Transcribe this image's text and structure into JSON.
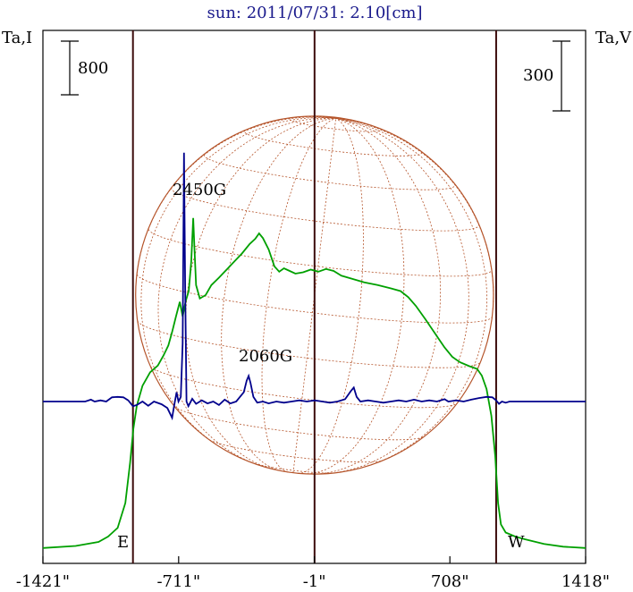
{
  "title": "sun: 2011/07/31: 2.10[cm]",
  "left_axis_label": "Ta,I",
  "right_axis_label": "Ta,V",
  "left_scale_label": "800",
  "right_scale_label": "300",
  "limb_labels": {
    "east": "E",
    "west": "W"
  },
  "annotations": {
    "peak1": "2450G",
    "peak2": "2060G"
  },
  "colors": {
    "intensity": "#00a000",
    "polarization": "#00008c",
    "disk": "#b5542a",
    "frame": "#000000",
    "limb_lines": "#3c0c0c",
    "title": "#1a1a8c"
  },
  "chart_data": {
    "type": "line",
    "title": "sun: 2011/07/31: 2.10[cm]",
    "x_ticks": [
      {
        "value": -1421,
        "label": "-1421\""
      },
      {
        "value": -711,
        "label": "-711\""
      },
      {
        "value": -1,
        "label": "-1\""
      },
      {
        "value": 708,
        "label": "708\""
      },
      {
        "value": 1418,
        "label": "1418\""
      }
    ],
    "xlim": [
      -1421,
      1418
    ],
    "limb_positions": [
      -950,
      950
    ],
    "center_position": 0,
    "series": [
      {
        "name": "Ta,I",
        "scale_bar": 800,
        "baseline": 0,
        "points": [
          [
            -1421,
            30
          ],
          [
            -1250,
            60
          ],
          [
            -1130,
            120
          ],
          [
            -1080,
            200
          ],
          [
            -1030,
            330
          ],
          [
            -990,
            700
          ],
          [
            -965,
            1300
          ],
          [
            -948,
            1800
          ],
          [
            -930,
            2150
          ],
          [
            -900,
            2450
          ],
          [
            -860,
            2650
          ],
          [
            -820,
            2750
          ],
          [
            -790,
            2900
          ],
          [
            -765,
            3050
          ],
          [
            -745,
            3250
          ],
          [
            -725,
            3480
          ],
          [
            -705,
            3700
          ],
          [
            -690,
            3480
          ],
          [
            -675,
            3700
          ],
          [
            -658,
            3860
          ],
          [
            -645,
            4300
          ],
          [
            -635,
            4950
          ],
          [
            -628,
            4500
          ],
          [
            -620,
            3950
          ],
          [
            -600,
            3750
          ],
          [
            -570,
            3800
          ],
          [
            -540,
            3950
          ],
          [
            -500,
            4060
          ],
          [
            -460,
            4180
          ],
          [
            -420,
            4300
          ],
          [
            -380,
            4420
          ],
          [
            -340,
            4560
          ],
          [
            -310,
            4640
          ],
          [
            -290,
            4720
          ],
          [
            -270,
            4650
          ],
          [
            -240,
            4480
          ],
          [
            -210,
            4230
          ],
          [
            -185,
            4150
          ],
          [
            -160,
            4200
          ],
          [
            -130,
            4160
          ],
          [
            -100,
            4120
          ],
          [
            -60,
            4140
          ],
          [
            -20,
            4180
          ],
          [
            20,
            4150
          ],
          [
            60,
            4190
          ],
          [
            100,
            4160
          ],
          [
            140,
            4090
          ],
          [
            200,
            4040
          ],
          [
            260,
            3990
          ],
          [
            330,
            3950
          ],
          [
            400,
            3900
          ],
          [
            450,
            3860
          ],
          [
            490,
            3770
          ],
          [
            530,
            3640
          ],
          [
            580,
            3440
          ],
          [
            630,
            3230
          ],
          [
            680,
            3020
          ],
          [
            720,
            2880
          ],
          [
            760,
            2800
          ],
          [
            810,
            2740
          ],
          [
            850,
            2700
          ],
          [
            875,
            2600
          ],
          [
            900,
            2400
          ],
          [
            925,
            2000
          ],
          [
            945,
            1400
          ],
          [
            960,
            700
          ],
          [
            975,
            380
          ],
          [
            1000,
            260
          ],
          [
            1050,
            200
          ],
          [
            1100,
            160
          ],
          [
            1200,
            90
          ],
          [
            1300,
            50
          ],
          [
            1418,
            30
          ]
        ]
      },
      {
        "name": "Ta,V",
        "scale_bar": 300,
        "baseline": 0,
        "points": [
          [
            -1421,
            0
          ],
          [
            -1200,
            0
          ],
          [
            -1170,
            8
          ],
          [
            -1150,
            0
          ],
          [
            -1120,
            5
          ],
          [
            -1090,
            0
          ],
          [
            -1060,
            18
          ],
          [
            -1030,
            20
          ],
          [
            -1000,
            18
          ],
          [
            -975,
            5
          ],
          [
            -950,
            -20
          ],
          [
            -930,
            -15
          ],
          [
            -900,
            0
          ],
          [
            -870,
            -18
          ],
          [
            -840,
            0
          ],
          [
            -800,
            -12
          ],
          [
            -770,
            -28
          ],
          [
            -745,
            -70
          ],
          [
            -735,
            -20
          ],
          [
            -722,
            40
          ],
          [
            -712,
            0
          ],
          [
            -700,
            20
          ],
          [
            -690,
            250
          ],
          [
            -683,
            1070
          ],
          [
            -677,
            500
          ],
          [
            -670,
            0
          ],
          [
            -660,
            -20
          ],
          [
            -640,
            12
          ],
          [
            -620,
            -10
          ],
          [
            -590,
            5
          ],
          [
            -560,
            -8
          ],
          [
            -530,
            0
          ],
          [
            -500,
            -15
          ],
          [
            -470,
            8
          ],
          [
            -440,
            -8
          ],
          [
            -410,
            0
          ],
          [
            -390,
            20
          ],
          [
            -370,
            40
          ],
          [
            -355,
            90
          ],
          [
            -345,
            110
          ],
          [
            -335,
            80
          ],
          [
            -320,
            20
          ],
          [
            -300,
            -5
          ],
          [
            -270,
            0
          ],
          [
            -240,
            -8
          ],
          [
            -200,
            0
          ],
          [
            -160,
            -5
          ],
          [
            -120,
            0
          ],
          [
            -80,
            5
          ],
          [
            -40,
            0
          ],
          [
            0,
            5
          ],
          [
            40,
            0
          ],
          [
            80,
            -5
          ],
          [
            120,
            0
          ],
          [
            160,
            10
          ],
          [
            190,
            45
          ],
          [
            205,
            60
          ],
          [
            220,
            20
          ],
          [
            240,
            0
          ],
          [
            280,
            5
          ],
          [
            320,
            0
          ],
          [
            360,
            -5
          ],
          [
            400,
            0
          ],
          [
            440,
            5
          ],
          [
            480,
            0
          ],
          [
            520,
            8
          ],
          [
            560,
            0
          ],
          [
            600,
            5
          ],
          [
            640,
            0
          ],
          [
            680,
            10
          ],
          [
            700,
            0
          ],
          [
            740,
            5
          ],
          [
            780,
            0
          ],
          [
            820,
            8
          ],
          [
            860,
            15
          ],
          [
            900,
            20
          ],
          [
            930,
            18
          ],
          [
            950,
            5
          ],
          [
            965,
            -10
          ],
          [
            980,
            0
          ],
          [
            1000,
            -5
          ],
          [
            1020,
            0
          ],
          [
            1418,
            0
          ]
        ]
      }
    ],
    "annotations": [
      {
        "text": "2450G",
        "x": -711
      },
      {
        "text": "2060G",
        "x": -350
      }
    ],
    "ylabel_left": "Ta,I",
    "ylabel_right": "Ta,V",
    "grid": false
  }
}
